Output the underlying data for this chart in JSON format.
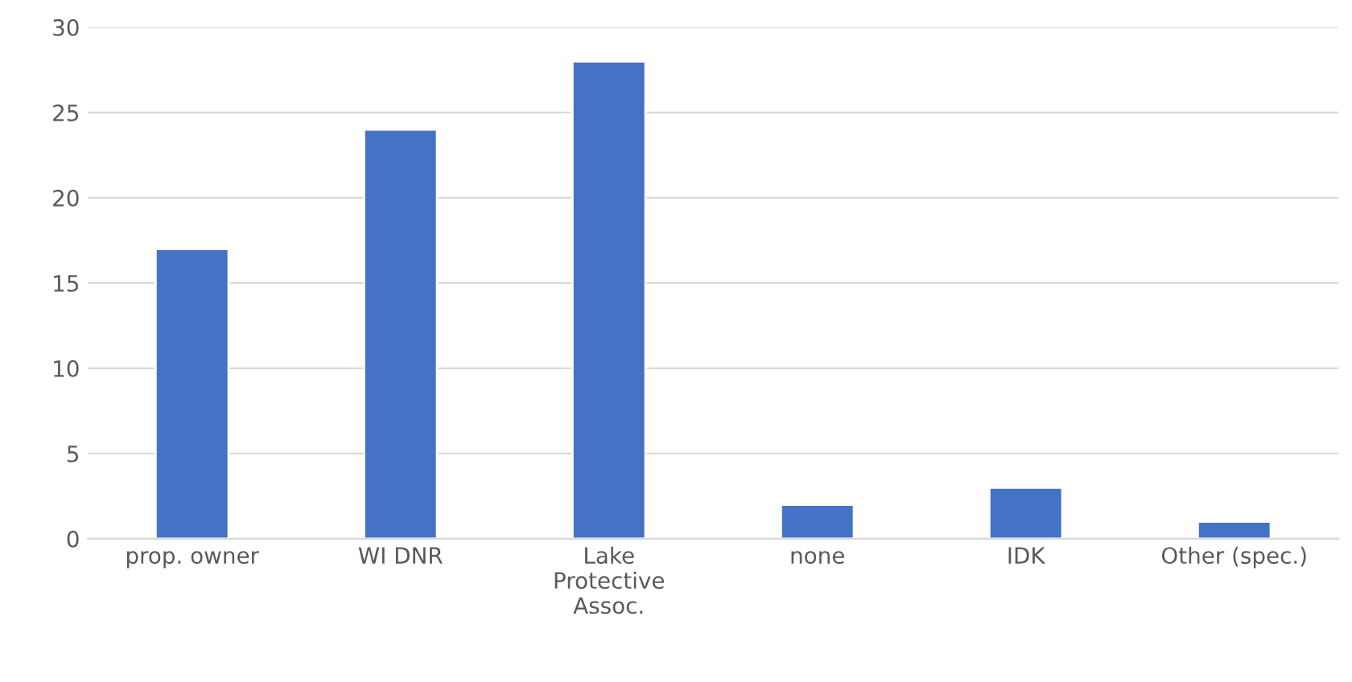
{
  "chart_data": {
    "type": "bar",
    "categories": [
      "prop. owner",
      "WI DNR",
      "Lake Protective Assoc.",
      "none",
      "IDK",
      "Other (spec.)"
    ],
    "values": [
      17,
      24,
      28,
      2,
      3,
      1
    ],
    "color": "#4472c4",
    "ylim": [
      0,
      30
    ],
    "yticks": [
      0,
      5,
      10,
      15,
      20,
      25,
      30
    ],
    "grid": "y"
  }
}
